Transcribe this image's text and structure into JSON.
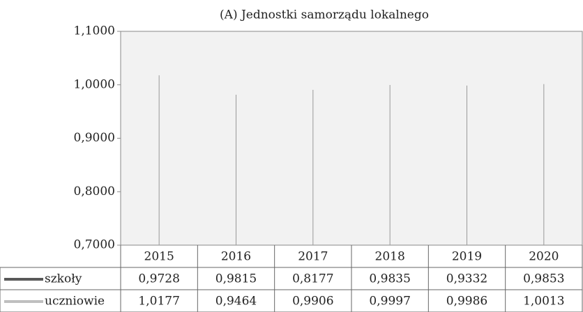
{
  "chart_data": {
    "type": "line",
    "title": "(A) Jednostki samorządu lokalnego",
    "categories": [
      "2015",
      "2016",
      "2017",
      "2018",
      "2019",
      "2020"
    ],
    "series": [
      {
        "name": "szkoły",
        "color": "#595959",
        "values": [
          0.9728,
          0.9815,
          0.8177,
          0.9835,
          0.9332,
          0.9853
        ],
        "value_labels": [
          "0,9728",
          "0,9815",
          "0,8177",
          "0,9835",
          "0,9332",
          "0,9853"
        ]
      },
      {
        "name": "uczniowie",
        "color": "#bfbfbf",
        "values": [
          1.0177,
          0.9464,
          0.9906,
          0.9997,
          0.9986,
          1.0013
        ],
        "value_labels": [
          "1,0177",
          "0,9464",
          "0,9906",
          "0,9997",
          "0,9986",
          "1,0013"
        ]
      }
    ],
    "ylim": [
      0.7,
      1.1
    ],
    "yticks": [
      {
        "value": 0.7,
        "label": "0,7000"
      },
      {
        "value": 0.8,
        "label": "0,8000"
      },
      {
        "value": 0.9,
        "label": "0,9000"
      },
      {
        "value": 1.0,
        "label": "1,0000"
      },
      {
        "value": 1.1,
        "label": "1,1000"
      }
    ],
    "drop_lines": true,
    "data_table": true
  }
}
